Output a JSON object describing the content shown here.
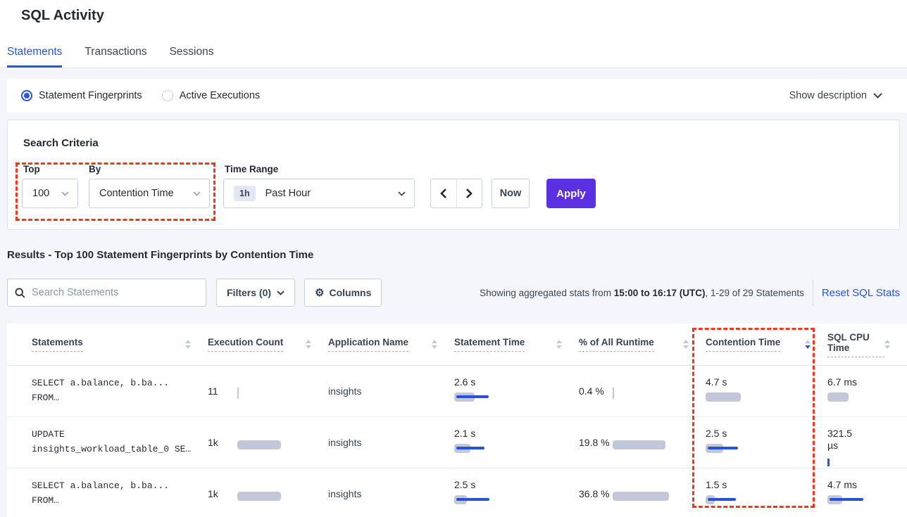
{
  "page": {
    "title": "SQL Activity"
  },
  "tabs": [
    {
      "label": "Statements",
      "active": true
    },
    {
      "label": "Transactions",
      "active": false
    },
    {
      "label": "Sessions",
      "active": false
    }
  ],
  "view_toggle": {
    "options": [
      {
        "label": "Statement Fingerprints",
        "selected": true
      },
      {
        "label": "Active Executions",
        "selected": false
      }
    ],
    "show_description_label": "Show description"
  },
  "search_criteria": {
    "heading": "Search Criteria",
    "top": {
      "label": "Top",
      "value": "100"
    },
    "by": {
      "label": "By",
      "value": "Contention Time"
    },
    "time_range": {
      "label": "Time Range",
      "badge": "1h",
      "value": "Past Hour"
    },
    "now_label": "Now",
    "apply_label": "Apply"
  },
  "results": {
    "heading": "Results - Top 100 Statement Fingerprints by Contention Time",
    "search_placeholder": "Search Statements",
    "filters_label": "Filters (0)",
    "columns_label": "Columns",
    "stats_prefix": "Showing aggregated stats from ",
    "stats_bold": "15:00 to 16:17 (UTC)",
    "stats_suffix": ", 1-29 of 29 Statements",
    "reset_label": "Reset SQL Stats"
  },
  "table": {
    "columns": [
      {
        "key": "statement",
        "label": "Statements",
        "sort": "none"
      },
      {
        "key": "execution_count",
        "label": "Execution Count",
        "sort": "none"
      },
      {
        "key": "application",
        "label": "Application Name",
        "sort": "none"
      },
      {
        "key": "statement_time",
        "label": "Statement Time",
        "sort": "none"
      },
      {
        "key": "pct_runtime",
        "label": "% of All Runtime",
        "sort": "none"
      },
      {
        "key": "contention_time",
        "label": "Contention Time",
        "sort": "desc"
      },
      {
        "key": "sql_cpu_time",
        "label": "SQL CPU Time",
        "sort": "none"
      }
    ],
    "rows": [
      {
        "statement": [
          "SELECT a.balance, b.ba...",
          "FROM…"
        ],
        "execution_count": {
          "text": "11",
          "bar": 0,
          "line": 0,
          "tick": "gray"
        },
        "application": "insights",
        "statement_time": {
          "text": "2.6 s",
          "bar": 29,
          "line": 46,
          "tick": null
        },
        "pct_runtime": {
          "text": "0.4 %",
          "bar": 0,
          "line": 0,
          "tick": "gray"
        },
        "contention_time": {
          "text": "4.7 s",
          "bar": 50,
          "line": 0,
          "tick": null
        },
        "sql_cpu_time": {
          "text": "6.7 ms",
          "bar": 30,
          "line": 0,
          "tick": null
        }
      },
      {
        "statement": [
          "UPDATE",
          "insights_workload_table_0 SE…"
        ],
        "execution_count": {
          "text": "1k",
          "bar": 62,
          "line": 0,
          "tick": null
        },
        "application": "insights",
        "statement_time": {
          "text": "2.1 s",
          "bar": 23,
          "line": 40,
          "tick": null
        },
        "pct_runtime": {
          "text": "19.8 %",
          "bar": 75,
          "line": 0,
          "tick": null
        },
        "contention_time": {
          "text": "2.5 s",
          "bar": 25,
          "line": 43,
          "tick": null
        },
        "sql_cpu_time": {
          "text": "321.5 µs",
          "bar": 0,
          "line": 0,
          "tick": "blue"
        }
      },
      {
        "statement": [
          "SELECT a.balance, b.ba...",
          "FROM…"
        ],
        "execution_count": {
          "text": "1k",
          "bar": 62,
          "line": 0,
          "tick": null
        },
        "application": "insights",
        "statement_time": {
          "text": "2.5 s",
          "bar": 18,
          "line": 47,
          "tick": null
        },
        "pct_runtime": {
          "text": "36.8 %",
          "bar": 80,
          "line": 0,
          "tick": null
        },
        "contention_time": {
          "text": "1.5 s",
          "bar": 13,
          "line": 40,
          "tick": null
        },
        "sql_cpu_time": {
          "text": "4.7 ms",
          "bar": 21,
          "line": 48,
          "tick": null
        }
      }
    ]
  },
  "colors": {
    "accent_blue": "#2b55d9",
    "apply_purple": "#5b2fe2",
    "annotation_red": "#ee3724",
    "bar_gray": "#c2c8d9",
    "bar_blue": "#2553dd"
  }
}
